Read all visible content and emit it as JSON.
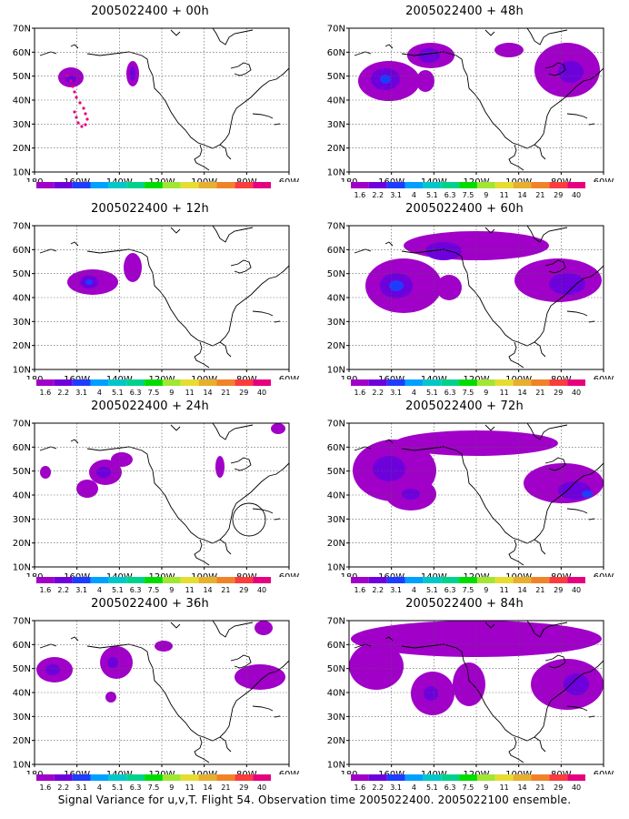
{
  "page": {
    "footer": "Signal Variance for u,v,T. Flight 54. Observation time 2005022400. 2005022100 ensemble."
  },
  "map": {
    "y_labels": [
      "70N",
      "60N",
      "50N",
      "40N",
      "30N",
      "20N",
      "10N"
    ],
    "x_labels": [
      "180",
      "160W",
      "140W",
      "120W",
      "100W",
      "80W",
      "60W"
    ]
  },
  "colorbar": {
    "labels": [
      "1.6",
      "2.2",
      "3.1",
      "4",
      "5.1",
      "6.3",
      "7.5",
      "9",
      "11",
      "14",
      "21",
      "29",
      "40"
    ],
    "colors": [
      "#a000c8",
      "#6e00dc",
      "#1e3cff",
      "#00a0ff",
      "#00c8c8",
      "#00d28c",
      "#00dc00",
      "#a0e632",
      "#e6dc32",
      "#e6af2d",
      "#f08228",
      "#fa3c3c",
      "#e6007d"
    ]
  },
  "panels": [
    {
      "title": "2005022400 + 00h",
      "colorbar_labels_visible": false
    },
    {
      "title": "2005022400 + 48h",
      "colorbar_labels_visible": true
    },
    {
      "title": "2005022400 + 12h",
      "colorbar_labels_visible": true
    },
    {
      "title": "2005022400 + 60h",
      "colorbar_labels_visible": true
    },
    {
      "title": "2005022400 + 24h",
      "colorbar_labels_visible": true
    },
    {
      "title": "2005022400 + 72h",
      "colorbar_labels_visible": true
    },
    {
      "title": "2005022400 + 36h",
      "colorbar_labels_visible": true
    },
    {
      "title": "2005022400 + 84h",
      "colorbar_labels_visible": true
    }
  ]
}
